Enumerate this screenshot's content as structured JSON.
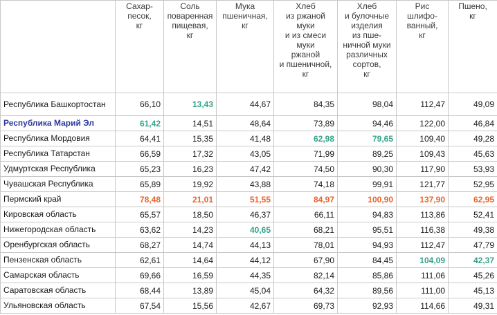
{
  "table": {
    "columns": [
      {
        "key": "region",
        "lines": []
      },
      {
        "key": "sugar",
        "lines": [
          "Сахар-",
          "песок,",
          "кг"
        ]
      },
      {
        "key": "salt",
        "lines": [
          "Соль",
          "поваренная",
          "пищевая,",
          "кг"
        ]
      },
      {
        "key": "flour",
        "lines": [
          "Мука",
          "пшеничная,",
          "кг"
        ]
      },
      {
        "key": "rye_bread",
        "lines": [
          "Хлеб",
          "из ржаной",
          "муки",
          "и из смеси",
          "муки",
          "ржаной",
          "и пшеничной,",
          "кг"
        ]
      },
      {
        "key": "wheat_bread",
        "lines": [
          "Хлеб",
          "и булочные",
          "изделия",
          "из пше-",
          "ничной муки",
          "различных",
          "сортов,",
          "кг"
        ]
      },
      {
        "key": "rice",
        "lines": [
          "Рис",
          "шлифо-",
          "ванный,",
          "кг"
        ]
      },
      {
        "key": "millet",
        "lines": [
          "Пшено,",
          "кг"
        ]
      }
    ],
    "rows": [
      {
        "region": "Республика Башкортостан",
        "values": [
          "66,10",
          "13,43",
          "44,67",
          "84,35",
          "98,04",
          "112,47",
          "49,09"
        ],
        "highlight": [
          null,
          "green",
          null,
          null,
          null,
          null,
          null
        ],
        "region_style": null
      },
      {
        "region": "Республика Марий Эл",
        "values": [
          "61,42",
          "14,51",
          "48,64",
          "73,89",
          "94,46",
          "122,00",
          "46,84"
        ],
        "highlight": [
          "green",
          null,
          null,
          null,
          null,
          null,
          null
        ],
        "region_style": "blue"
      },
      {
        "region": "Республика Мордовия",
        "values": [
          "64,41",
          "15,35",
          "41,48",
          "62,98",
          "79,65",
          "109,40",
          "49,28"
        ],
        "highlight": [
          null,
          null,
          null,
          "green",
          "green",
          null,
          null
        ],
        "region_style": null
      },
      {
        "region": "Республика Татарстан",
        "values": [
          "66,59",
          "17,32",
          "43,05",
          "71,99",
          "89,25",
          "109,43",
          "45,63"
        ],
        "highlight": [
          null,
          null,
          null,
          null,
          null,
          null,
          null
        ],
        "region_style": null
      },
      {
        "region": "Удмуртская Республика",
        "values": [
          "65,23",
          "16,23",
          "47,42",
          "74,50",
          "90,30",
          "117,90",
          "53,93"
        ],
        "highlight": [
          null,
          null,
          null,
          null,
          null,
          null,
          null
        ],
        "region_style": null
      },
      {
        "region": "Чувашская Республика",
        "values": [
          "65,89",
          "19,92",
          "43,88",
          "74,18",
          "99,91",
          "121,77",
          "52,95"
        ],
        "highlight": [
          null,
          null,
          null,
          null,
          null,
          null,
          null
        ],
        "region_style": null
      },
      {
        "region": "Пермский край",
        "values": [
          "78,48",
          "21,01",
          "51,55",
          "84,97",
          "100,90",
          "137,90",
          "62,95"
        ],
        "highlight": [
          "orange",
          "orange",
          "orange",
          "orange",
          "orange",
          "orange",
          "orange"
        ],
        "region_style": null
      },
      {
        "region": "Кировская область",
        "values": [
          "65,57",
          "18,50",
          "46,37",
          "66,11",
          "94,83",
          "113,86",
          "52,41"
        ],
        "highlight": [
          null,
          null,
          null,
          null,
          null,
          null,
          null
        ],
        "region_style": null
      },
      {
        "region": "Нижегородская область",
        "values": [
          "63,62",
          "14,23",
          "40,65",
          "68,21",
          "95,51",
          "116,38",
          "49,38"
        ],
        "highlight": [
          null,
          null,
          "green",
          null,
          null,
          null,
          null
        ],
        "region_style": null
      },
      {
        "region": "Оренбургская область",
        "values": [
          "68,27",
          "14,74",
          "44,13",
          "78,01",
          "94,93",
          "112,47",
          "47,79"
        ],
        "highlight": [
          null,
          null,
          null,
          null,
          null,
          null,
          null
        ],
        "region_style": null
      },
      {
        "region": "Пензенская область",
        "values": [
          "62,61",
          "14,64",
          "44,12",
          "67,90",
          "84,45",
          "104,09",
          "42,37"
        ],
        "highlight": [
          null,
          null,
          null,
          null,
          null,
          "green",
          "green"
        ],
        "region_style": null
      },
      {
        "region": "Самарская область",
        "values": [
          "69,66",
          "16,59",
          "44,35",
          "82,14",
          "85,86",
          "111,06",
          "45,26"
        ],
        "highlight": [
          null,
          null,
          null,
          null,
          null,
          null,
          null
        ],
        "region_style": null
      },
      {
        "region": "Саратовская область",
        "values": [
          "68,44",
          "13,89",
          "45,04",
          "64,32",
          "89,56",
          "111,00",
          "45,13"
        ],
        "highlight": [
          null,
          null,
          null,
          null,
          null,
          null,
          null
        ],
        "region_style": null
      },
      {
        "region": "Ульяновская область",
        "values": [
          "67,54",
          "15,56",
          "42,67",
          "69,73",
          "92,93",
          "114,66",
          "49,31"
        ],
        "highlight": [
          null,
          null,
          null,
          null,
          null,
          null,
          null
        ],
        "region_style": null
      }
    ]
  },
  "colors": {
    "green": "#34a38a",
    "orange": "#e9622a",
    "blue": "#2c3a9e",
    "grid": "#c8c8c8"
  }
}
